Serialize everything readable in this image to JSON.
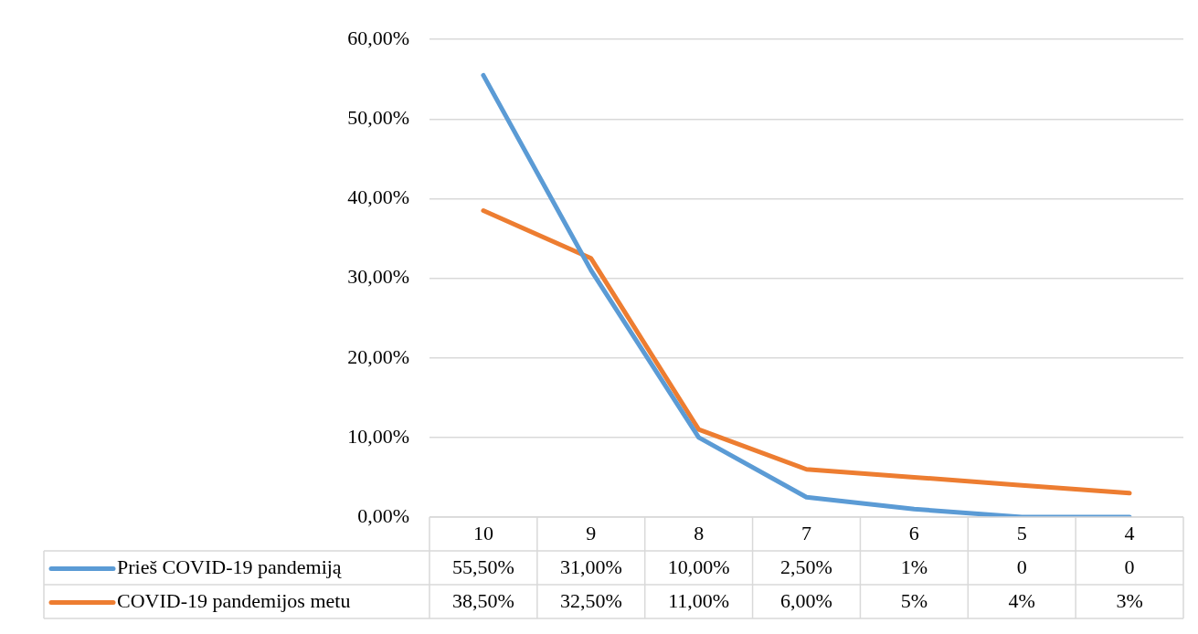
{
  "chart_data": {
    "type": "line",
    "categories": [
      "10",
      "9",
      "8",
      "7",
      "6",
      "5",
      "4"
    ],
    "series": [
      {
        "name": "Prieš COVID-19 pandemiją",
        "color": "#5b9bd5",
        "values": [
          55.5,
          31,
          10,
          2.5,
          1,
          0,
          0
        ],
        "value_labels": [
          "55,50%",
          "31,00%",
          "10,00%",
          "2,50%",
          "1%",
          "0",
          "0"
        ]
      },
      {
        "name": "COVID-19 pandemijos metu",
        "color": "#ed7d31",
        "values": [
          38.5,
          32.5,
          11,
          6,
          5,
          4,
          3
        ],
        "value_labels": [
          "38,50%",
          "32,50%",
          "11,00%",
          "6,00%",
          "5%",
          "4%",
          "3%"
        ]
      }
    ],
    "ylim": [
      0,
      60
    ],
    "yticks": [
      {
        "value": 0,
        "label": "0,00%"
      },
      {
        "value": 10,
        "label": "10,00%"
      },
      {
        "value": 20,
        "label": "20,00%"
      },
      {
        "value": 30,
        "label": "30,00%"
      },
      {
        "value": 40,
        "label": "40,00%"
      },
      {
        "value": 50,
        "label": "50,00%"
      },
      {
        "value": 60,
        "label": "60,00%"
      }
    ],
    "grid": "y",
    "legend": "bottom",
    "marker": "none",
    "line_style": "solid"
  }
}
